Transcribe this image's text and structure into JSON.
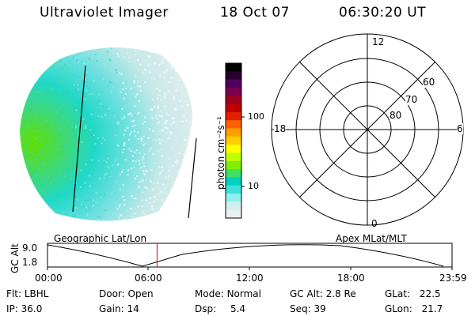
{
  "header": {
    "instrument": "Ultraviolet Imager",
    "date": "18 Oct 07",
    "time": "06:30:20 UT"
  },
  "image_panel": {
    "caption": "Geographic Lat/Lon"
  },
  "colorbar": {
    "label": "photon cm⁻²s⁻¹",
    "ticks": [
      "100",
      "10"
    ],
    "colors": [
      "#000000",
      "#2a0030",
      "#500060",
      "#7a0050",
      "#a00020",
      "#c00000",
      "#e02000",
      "#ff6000",
      "#ffa000",
      "#ffd000",
      "#ffff00",
      "#c0ff00",
      "#80f000",
      "#40e060",
      "#00d0c0",
      "#40e0e0",
      "#90f0f0",
      "#d0f0f0",
      "#e8f0f0"
    ]
  },
  "polar_plot": {
    "caption": "Apex MLat/MLT",
    "mlt_labels": {
      "top": "12",
      "bottom": "0",
      "left": "18",
      "right": "6"
    },
    "lat_labels": [
      "80",
      "70",
      "60"
    ]
  },
  "altitude_strip": {
    "ylabel": "GC Alt",
    "yticks": [
      "9.0",
      "1.8"
    ],
    "xticks": [
      "00:00",
      "06:00",
      "12:00",
      "18:00",
      "23:59"
    ],
    "current_marker_hours": 6.5
  },
  "status": {
    "row1": [
      {
        "label": "Flt:",
        "value": "LBHL"
      },
      {
        "label": "Door:",
        "value": "Open"
      },
      {
        "label": "Mode:",
        "value": "Normal"
      },
      {
        "label": "GC Alt:",
        "value": "2.8 Re"
      },
      {
        "label": "GLat:",
        "value": "22.5"
      }
    ],
    "row2": [
      {
        "label": "IP:",
        "value": "36.0"
      },
      {
        "label": "Gain:",
        "value": "14"
      },
      {
        "label": "Dsp:",
        "value": "5.4"
      },
      {
        "label": "Seq:",
        "value": "39"
      },
      {
        "label": "GLon:",
        "value": "21.7"
      }
    ]
  }
}
